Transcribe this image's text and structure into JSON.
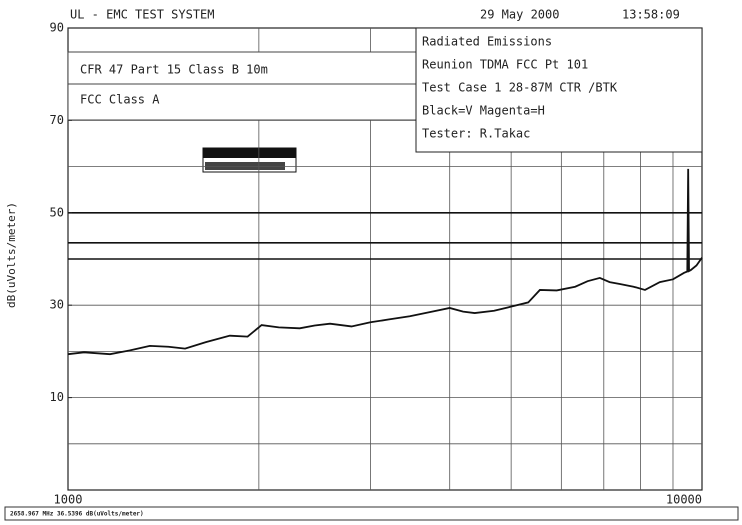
{
  "chart_data": {
    "type": "line",
    "header": {
      "left": "UL - EMC TEST SYSTEM",
      "date": "29 May 2000",
      "time": "13:58:09"
    },
    "ylabel": "dB(uVolts/meter)",
    "xlim": [
      1000,
      10000
    ],
    "xticks": [
      1000,
      10000
    ],
    "xscale": "log",
    "xgrid": [
      2000,
      3000,
      4000,
      5000,
      6000,
      7000,
      8000,
      9000
    ],
    "ylim": [
      -10,
      90
    ],
    "yticks": [
      10,
      30,
      50,
      70,
      90
    ],
    "ygrid": [
      0,
      10,
      20,
      30,
      40,
      50,
      60,
      70,
      80
    ],
    "limit_lines": [
      50,
      43.5,
      40
    ],
    "limit_labels": [
      "CFR 47 Part 15  Class B 10m",
      "FCC Class A"
    ],
    "info_box": [
      "Radiated Emissions",
      "Reunion TDMA      FCC Pt 101",
      "Test Case 1 28-87M CTR /BTK",
      "Black=V  Magenta=H",
      "Tester: R.Takac"
    ],
    "status": "2658.967 MHz 36.5396 dB(uVolts/meter)",
    "series": [
      {
        "name": "V",
        "color": "#111111",
        "x": [
          1000,
          1060,
          1165,
          1250,
          1346,
          1440,
          1530,
          1650,
          1800,
          1920,
          2020,
          2150,
          2320,
          2450,
          2590,
          2800,
          3000,
          3200,
          3460,
          3720,
          4000,
          4200,
          4380,
          4700,
          4970,
          5320,
          5550,
          5900,
          6310,
          6600,
          6900,
          7150,
          7420,
          7800,
          8130,
          8580,
          9000,
          9370,
          9480,
          9510,
          9540,
          9600,
          9800,
          10000
        ],
        "values": [
          19.4,
          19.8,
          19.4,
          20.2,
          21.2,
          21.0,
          20.6,
          22.0,
          23.4,
          23.2,
          25.7,
          25.2,
          25.0,
          25.6,
          26.0,
          25.4,
          26.3,
          26.9,
          27.6,
          28.5,
          29.4,
          28.6,
          28.3,
          28.8,
          29.6,
          30.6,
          33.3,
          33.2,
          34.0,
          35.2,
          35.9,
          35.0,
          34.6,
          34.0,
          33.3,
          35.0,
          35.6,
          37.0,
          37.3,
          59.5,
          37.4,
          37.6,
          38.6,
          40.3
        ]
      }
    ]
  }
}
